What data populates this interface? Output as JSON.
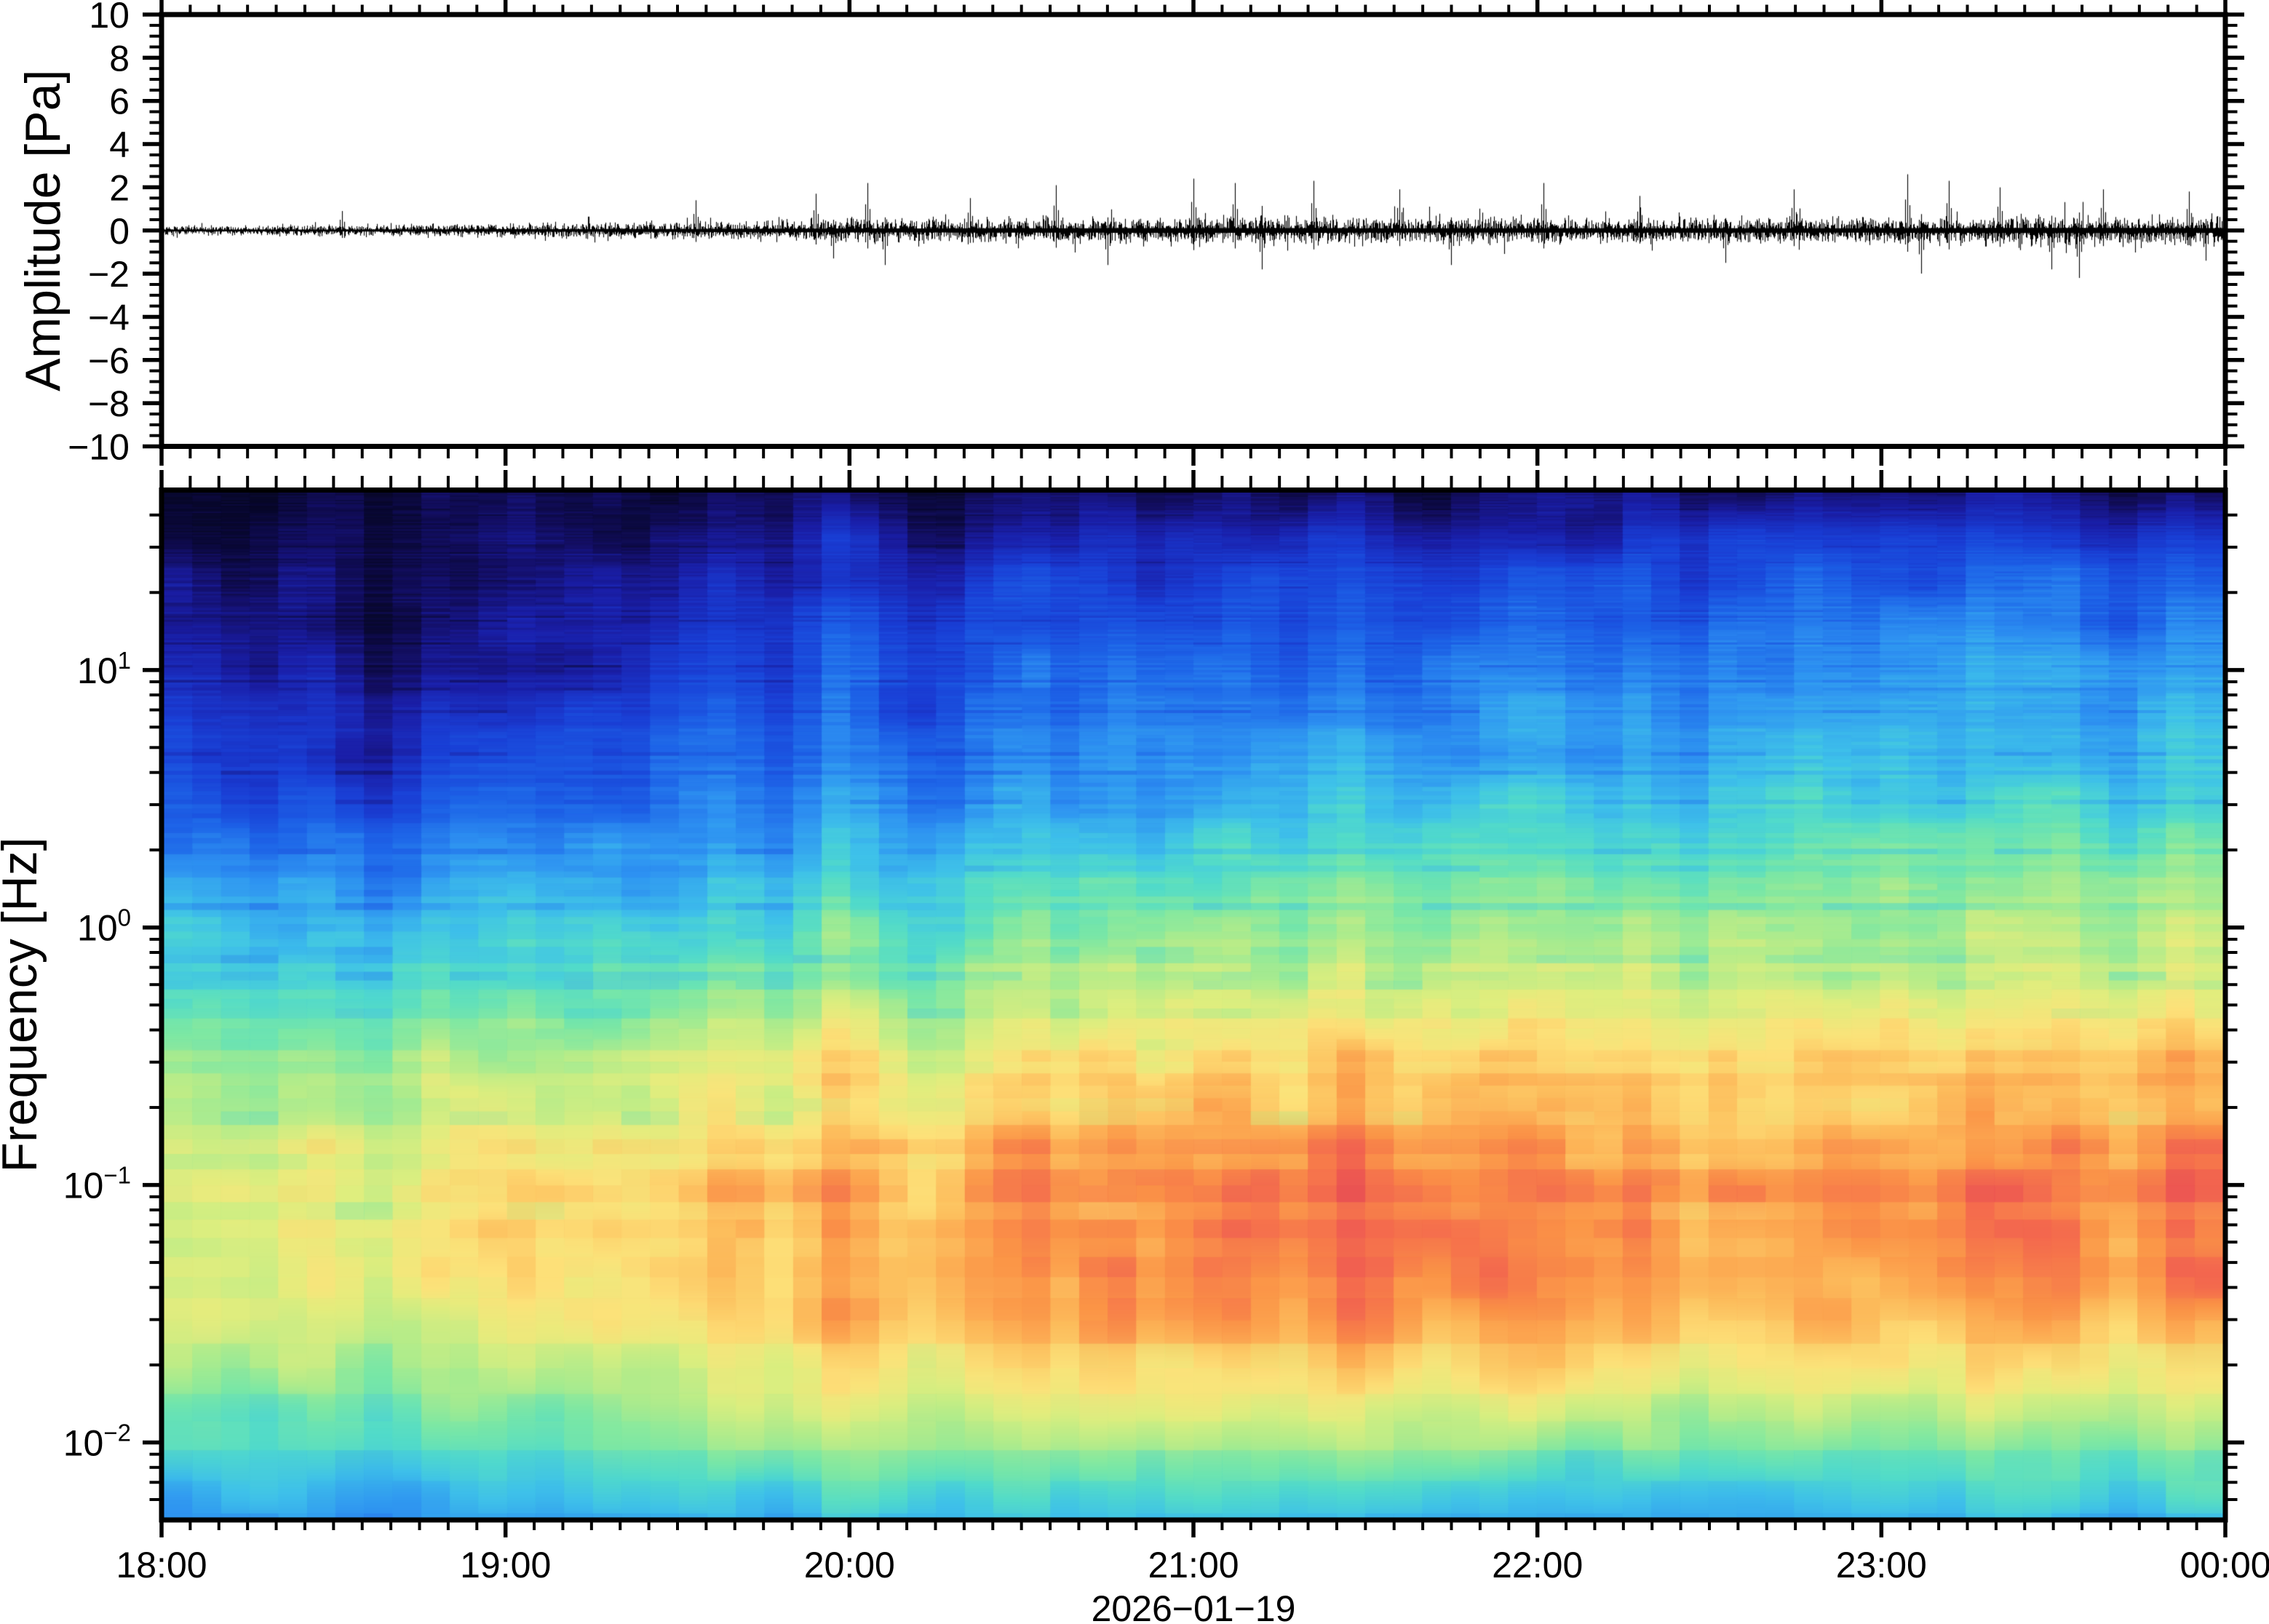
{
  "figure": {
    "background": "#ffffff",
    "frame_color": "#000000",
    "accent_black": "#000000"
  },
  "panels": {
    "amplitude": {
      "ylabel": "Amplitude [Pa]",
      "ylim": [
        -10,
        10
      ],
      "ytick_major_step": 2,
      "ytick_minor_step": 0.5,
      "ytick_labels": [
        "10",
        "8",
        "6",
        "4",
        "2",
        "0",
        "−2",
        "−4",
        "−6",
        "−8",
        "−10"
      ]
    },
    "spectrogram": {
      "ylabel": "Frequency [Hz]",
      "y_scale": "log",
      "freq_range_hz": [
        0.005,
        50
      ],
      "ytick_base": "10",
      "ytick_exponents": [
        "1",
        "0",
        "−1",
        "−2"
      ]
    }
  },
  "xaxis": {
    "hour_labels": [
      "18:00",
      "19:00",
      "20:00",
      "21:00",
      "22:00",
      "23:00",
      "00:00"
    ],
    "date_label": "2026−01−19",
    "minor_tick_minutes": 5
  },
  "chart_data": [
    {
      "type": "line",
      "name": "infrasound-waveform",
      "ylabel": "Amplitude [Pa]",
      "ylim": [
        -10,
        10
      ],
      "x_range_hours": [
        0,
        6
      ],
      "x_tick_labels": [
        "18:00",
        "19:00",
        "20:00",
        "21:00",
        "22:00",
        "23:00",
        "00:00"
      ],
      "line_color": "#000000",
      "envelope_pa": {
        "t_hours": [
          0,
          0.3,
          0.6,
          0.9,
          1.2,
          1.5,
          1.8,
          2.1,
          2.4,
          2.7,
          3.0,
          3.3,
          3.6,
          3.9,
          4.2,
          4.5,
          4.8,
          5.1,
          5.4,
          5.7,
          6.0
        ],
        "amplitude": [
          0.22,
          0.22,
          0.26,
          0.3,
          0.34,
          0.38,
          0.46,
          0.52,
          0.55,
          0.58,
          0.62,
          0.6,
          0.57,
          0.57,
          0.58,
          0.55,
          0.56,
          0.6,
          0.66,
          0.64,
          0.62
        ]
      },
      "spikes_t_amp_sign": [
        [
          0.52,
          0.9,
          1
        ],
        [
          1.55,
          1.4,
          1
        ],
        [
          1.9,
          1.7,
          1
        ],
        [
          1.95,
          1.3,
          -1
        ],
        [
          2.05,
          2.2,
          1
        ],
        [
          2.1,
          1.6,
          -1
        ],
        [
          2.35,
          1.5,
          1
        ],
        [
          2.6,
          2.1,
          1
        ],
        [
          2.75,
          1.6,
          -1
        ],
        [
          3.0,
          2.4,
          1
        ],
        [
          3.12,
          2.2,
          1
        ],
        [
          3.2,
          1.8,
          -1
        ],
        [
          3.35,
          2.3,
          1
        ],
        [
          3.6,
          1.9,
          1
        ],
        [
          3.75,
          1.6,
          -1
        ],
        [
          4.02,
          2.2,
          1
        ],
        [
          4.3,
          1.6,
          1
        ],
        [
          4.55,
          1.5,
          -1
        ],
        [
          4.75,
          1.9,
          1
        ],
        [
          5.08,
          2.6,
          1
        ],
        [
          5.12,
          2.0,
          -1
        ],
        [
          5.2,
          2.3,
          1
        ],
        [
          5.35,
          2.0,
          1
        ],
        [
          5.5,
          1.8,
          -1
        ],
        [
          5.58,
          2.2,
          -1
        ],
        [
          5.65,
          1.9,
          1
        ],
        [
          5.9,
          1.8,
          1
        ],
        [
          5.95,
          1.4,
          -1
        ]
      ]
    },
    {
      "type": "heatmap",
      "name": "spectrogram",
      "ylabel": "Frequency [Hz]",
      "y_scale": "log",
      "freq_range_hz": [
        0.005,
        50
      ],
      "time_range": [
        "18:00",
        "00:00"
      ],
      "date": "2026−01−19",
      "column_minutes": 5,
      "colormap_stops": [
        [
          0.0,
          "#070726"
        ],
        [
          0.06,
          "#140f63"
        ],
        [
          0.12,
          "#1b1fa8"
        ],
        [
          0.2,
          "#1a3fd6"
        ],
        [
          0.28,
          "#1e64e8"
        ],
        [
          0.36,
          "#2f94f2"
        ],
        [
          0.44,
          "#3fc2ea"
        ],
        [
          0.5,
          "#52dcca"
        ],
        [
          0.56,
          "#7ce8a5"
        ],
        [
          0.62,
          "#b2ec8b"
        ],
        [
          0.68,
          "#e2ee7e"
        ],
        [
          0.74,
          "#fee27a"
        ],
        [
          0.8,
          "#fdbd5c"
        ],
        [
          0.86,
          "#fb9447"
        ],
        [
          0.92,
          "#f4694e"
        ],
        [
          0.97,
          "#e94d57"
        ],
        [
          1.0,
          "#df3d55"
        ]
      ],
      "power_grid": {
        "freqs_hz": [
          50,
          25,
          10,
          4,
          1.6,
          0.6,
          0.25,
          0.1,
          0.04,
          0.016,
          0.008,
          0.005
        ],
        "time_hours": [
          0,
          0.5,
          1,
          1.5,
          2,
          2.5,
          3,
          3.5,
          4,
          4.5,
          5,
          5.5,
          6
        ],
        "values": [
          [
            0.02,
            0.02,
            0.03,
            0.03,
            0.04,
            0.04,
            0.05,
            0.05,
            0.05,
            0.06,
            0.06,
            0.06,
            0.07
          ],
          [
            0.08,
            0.05,
            0.06,
            0.13,
            0.15,
            0.18,
            0.2,
            0.22,
            0.22,
            0.23,
            0.24,
            0.26,
            0.27
          ],
          [
            0.14,
            0.09,
            0.11,
            0.2,
            0.23,
            0.27,
            0.3,
            0.32,
            0.32,
            0.33,
            0.34,
            0.36,
            0.37
          ],
          [
            0.24,
            0.17,
            0.2,
            0.28,
            0.31,
            0.35,
            0.38,
            0.4,
            0.4,
            0.41,
            0.41,
            0.43,
            0.44
          ],
          [
            0.38,
            0.33,
            0.36,
            0.42,
            0.45,
            0.49,
            0.52,
            0.53,
            0.53,
            0.54,
            0.54,
            0.56,
            0.57
          ],
          [
            0.52,
            0.48,
            0.51,
            0.55,
            0.58,
            0.62,
            0.65,
            0.66,
            0.65,
            0.65,
            0.64,
            0.67,
            0.68
          ],
          [
            0.63,
            0.61,
            0.65,
            0.69,
            0.71,
            0.75,
            0.78,
            0.8,
            0.78,
            0.77,
            0.76,
            0.79,
            0.81
          ],
          [
            0.71,
            0.69,
            0.74,
            0.78,
            0.8,
            0.85,
            0.88,
            0.9,
            0.88,
            0.85,
            0.84,
            0.88,
            0.9
          ],
          [
            0.71,
            0.68,
            0.73,
            0.76,
            0.79,
            0.85,
            0.88,
            0.91,
            0.87,
            0.84,
            0.83,
            0.87,
            0.88
          ],
          [
            0.6,
            0.58,
            0.62,
            0.65,
            0.69,
            0.73,
            0.74,
            0.75,
            0.71,
            0.68,
            0.67,
            0.69,
            0.71
          ],
          [
            0.47,
            0.45,
            0.47,
            0.5,
            0.53,
            0.57,
            0.56,
            0.57,
            0.53,
            0.51,
            0.51,
            0.53,
            0.53
          ],
          [
            0.37,
            0.35,
            0.37,
            0.39,
            0.41,
            0.44,
            0.43,
            0.44,
            0.41,
            0.39,
            0.39,
            0.41,
            0.41
          ]
        ]
      },
      "bright_columns": [
        [
          23,
          0.05
        ],
        [
          24,
          0.06
        ]
      ],
      "dark_columns": [
        [
          26,
          -0.04
        ],
        [
          27,
          -0.03
        ]
      ]
    }
  ]
}
